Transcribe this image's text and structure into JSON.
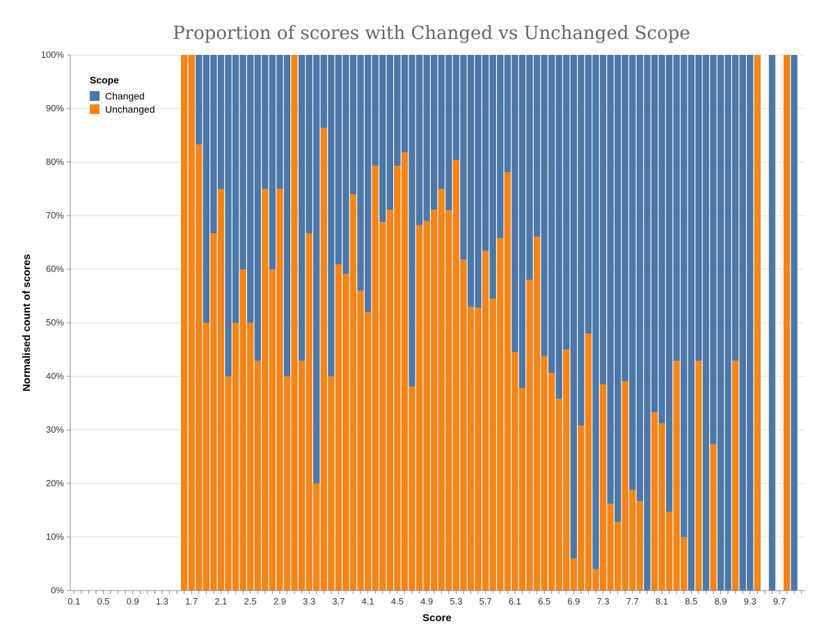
{
  "chart_data": {
    "type": "bar",
    "stacked": true,
    "normalized": true,
    "title": "Proportion of scores with Changed vs Unchanged Scope",
    "xlabel": "Score",
    "ylabel": "Normalised count of scores",
    "ylim": [
      0,
      1
    ],
    "y_ticks": [
      "0%",
      "10%",
      "20%",
      "30%",
      "40%",
      "50%",
      "60%",
      "70%",
      "80%",
      "90%",
      "100%"
    ],
    "x": [
      0.1,
      0.2,
      0.3,
      0.4,
      0.5,
      0.6,
      0.7,
      0.8,
      0.9,
      1.0,
      1.1,
      1.2,
      1.3,
      1.4,
      1.5,
      1.6,
      1.7,
      1.8,
      1.9,
      2.0,
      2.1,
      2.2,
      2.3,
      2.4,
      2.5,
      2.6,
      2.7,
      2.8,
      2.9,
      3.0,
      3.1,
      3.2,
      3.3,
      3.4,
      3.5,
      3.6,
      3.7,
      3.8,
      3.9,
      4.0,
      4.1,
      4.2,
      4.3,
      4.4,
      4.5,
      4.6,
      4.7,
      4.8,
      4.9,
      5.0,
      5.1,
      5.2,
      5.3,
      5.4,
      5.5,
      5.6,
      5.7,
      5.8,
      5.9,
      6.0,
      6.1,
      6.2,
      6.3,
      6.4,
      6.5,
      6.6,
      6.7,
      6.8,
      6.9,
      7.0,
      7.1,
      7.2,
      7.3,
      7.4,
      7.5,
      7.6,
      7.7,
      7.8,
      7.9,
      8.0,
      8.1,
      8.2,
      8.3,
      8.4,
      8.5,
      8.6,
      8.7,
      8.8,
      8.9,
      9.0,
      9.1,
      9.2,
      9.3,
      9.4,
      9.5,
      9.6,
      9.7,
      9.8,
      9.9,
      10.0
    ],
    "x_tick_labels": [
      "0.1",
      "0.5",
      "0.9",
      "1.3",
      "1.7",
      "2.1",
      "2.5",
      "2.9",
      "3.3",
      "3.7",
      "4.1",
      "4.5",
      "4.9",
      "5.3",
      "5.7",
      "6.1",
      "6.5",
      "6.9",
      "7.3",
      "7.7",
      "8.1",
      "8.5",
      "8.9",
      "9.3",
      "9.7"
    ],
    "legend": {
      "title": "Scope",
      "position": "top-left",
      "entries": [
        "Changed",
        "Unchanged"
      ]
    },
    "colors": {
      "Changed": "#4c78a8",
      "Unchanged": "#f58518"
    },
    "grid": true,
    "series": [
      {
        "name": "Unchanged",
        "values": [
          null,
          null,
          null,
          null,
          null,
          null,
          null,
          null,
          null,
          null,
          null,
          null,
          null,
          null,
          null,
          1.0,
          1.0,
          0.833,
          0.5,
          0.667,
          0.75,
          0.4,
          0.5,
          0.6,
          0.5,
          0.429,
          0.75,
          0.6,
          0.75,
          0.4,
          1.0,
          0.429,
          0.667,
          0.2,
          0.864,
          0.4,
          0.609,
          0.591,
          0.74,
          0.56,
          0.52,
          0.793,
          0.688,
          0.711,
          0.793,
          0.818,
          0.381,
          0.682,
          0.69,
          0.711,
          0.75,
          0.71,
          0.804,
          0.618,
          0.53,
          0.528,
          0.634,
          0.545,
          0.658,
          0.781,
          0.445,
          0.378,
          0.58,
          0.661,
          0.438,
          0.406,
          0.358,
          0.45,
          0.06,
          0.308,
          0.48,
          0.04,
          0.385,
          0.162,
          0.128,
          0.391,
          0.188,
          0.167,
          0.0,
          0.333,
          0.312,
          0.147,
          0.429,
          0.1,
          0.0,
          0.429,
          0.0,
          0.273,
          0.0,
          0.0,
          0.429,
          0.0,
          0.0,
          1.0,
          null,
          0.0,
          null,
          1.0,
          0.0,
          null
        ]
      },
      {
        "name": "Changed",
        "values": [
          null,
          null,
          null,
          null,
          null,
          null,
          null,
          null,
          null,
          null,
          null,
          null,
          null,
          null,
          null,
          0.0,
          0.0,
          0.167,
          0.5,
          0.333,
          0.25,
          0.6,
          0.5,
          0.4,
          0.5,
          0.571,
          0.25,
          0.4,
          0.25,
          0.6,
          0.0,
          0.571,
          0.333,
          0.8,
          0.136,
          0.6,
          0.391,
          0.409,
          0.26,
          0.44,
          0.48,
          0.207,
          0.312,
          0.289,
          0.207,
          0.182,
          0.619,
          0.318,
          0.31,
          0.289,
          0.25,
          0.29,
          0.196,
          0.382,
          0.47,
          0.472,
          0.366,
          0.455,
          0.342,
          0.219,
          0.555,
          0.622,
          0.42,
          0.339,
          0.562,
          0.594,
          0.642,
          0.55,
          0.94,
          0.692,
          0.52,
          0.96,
          0.615,
          0.838,
          0.872,
          0.609,
          0.812,
          0.833,
          1.0,
          0.667,
          0.688,
          0.853,
          0.571,
          0.9,
          1.0,
          0.571,
          1.0,
          0.727,
          1.0,
          1.0,
          0.571,
          1.0,
          1.0,
          0.0,
          null,
          1.0,
          null,
          0.0,
          1.0,
          null
        ]
      }
    ]
  }
}
